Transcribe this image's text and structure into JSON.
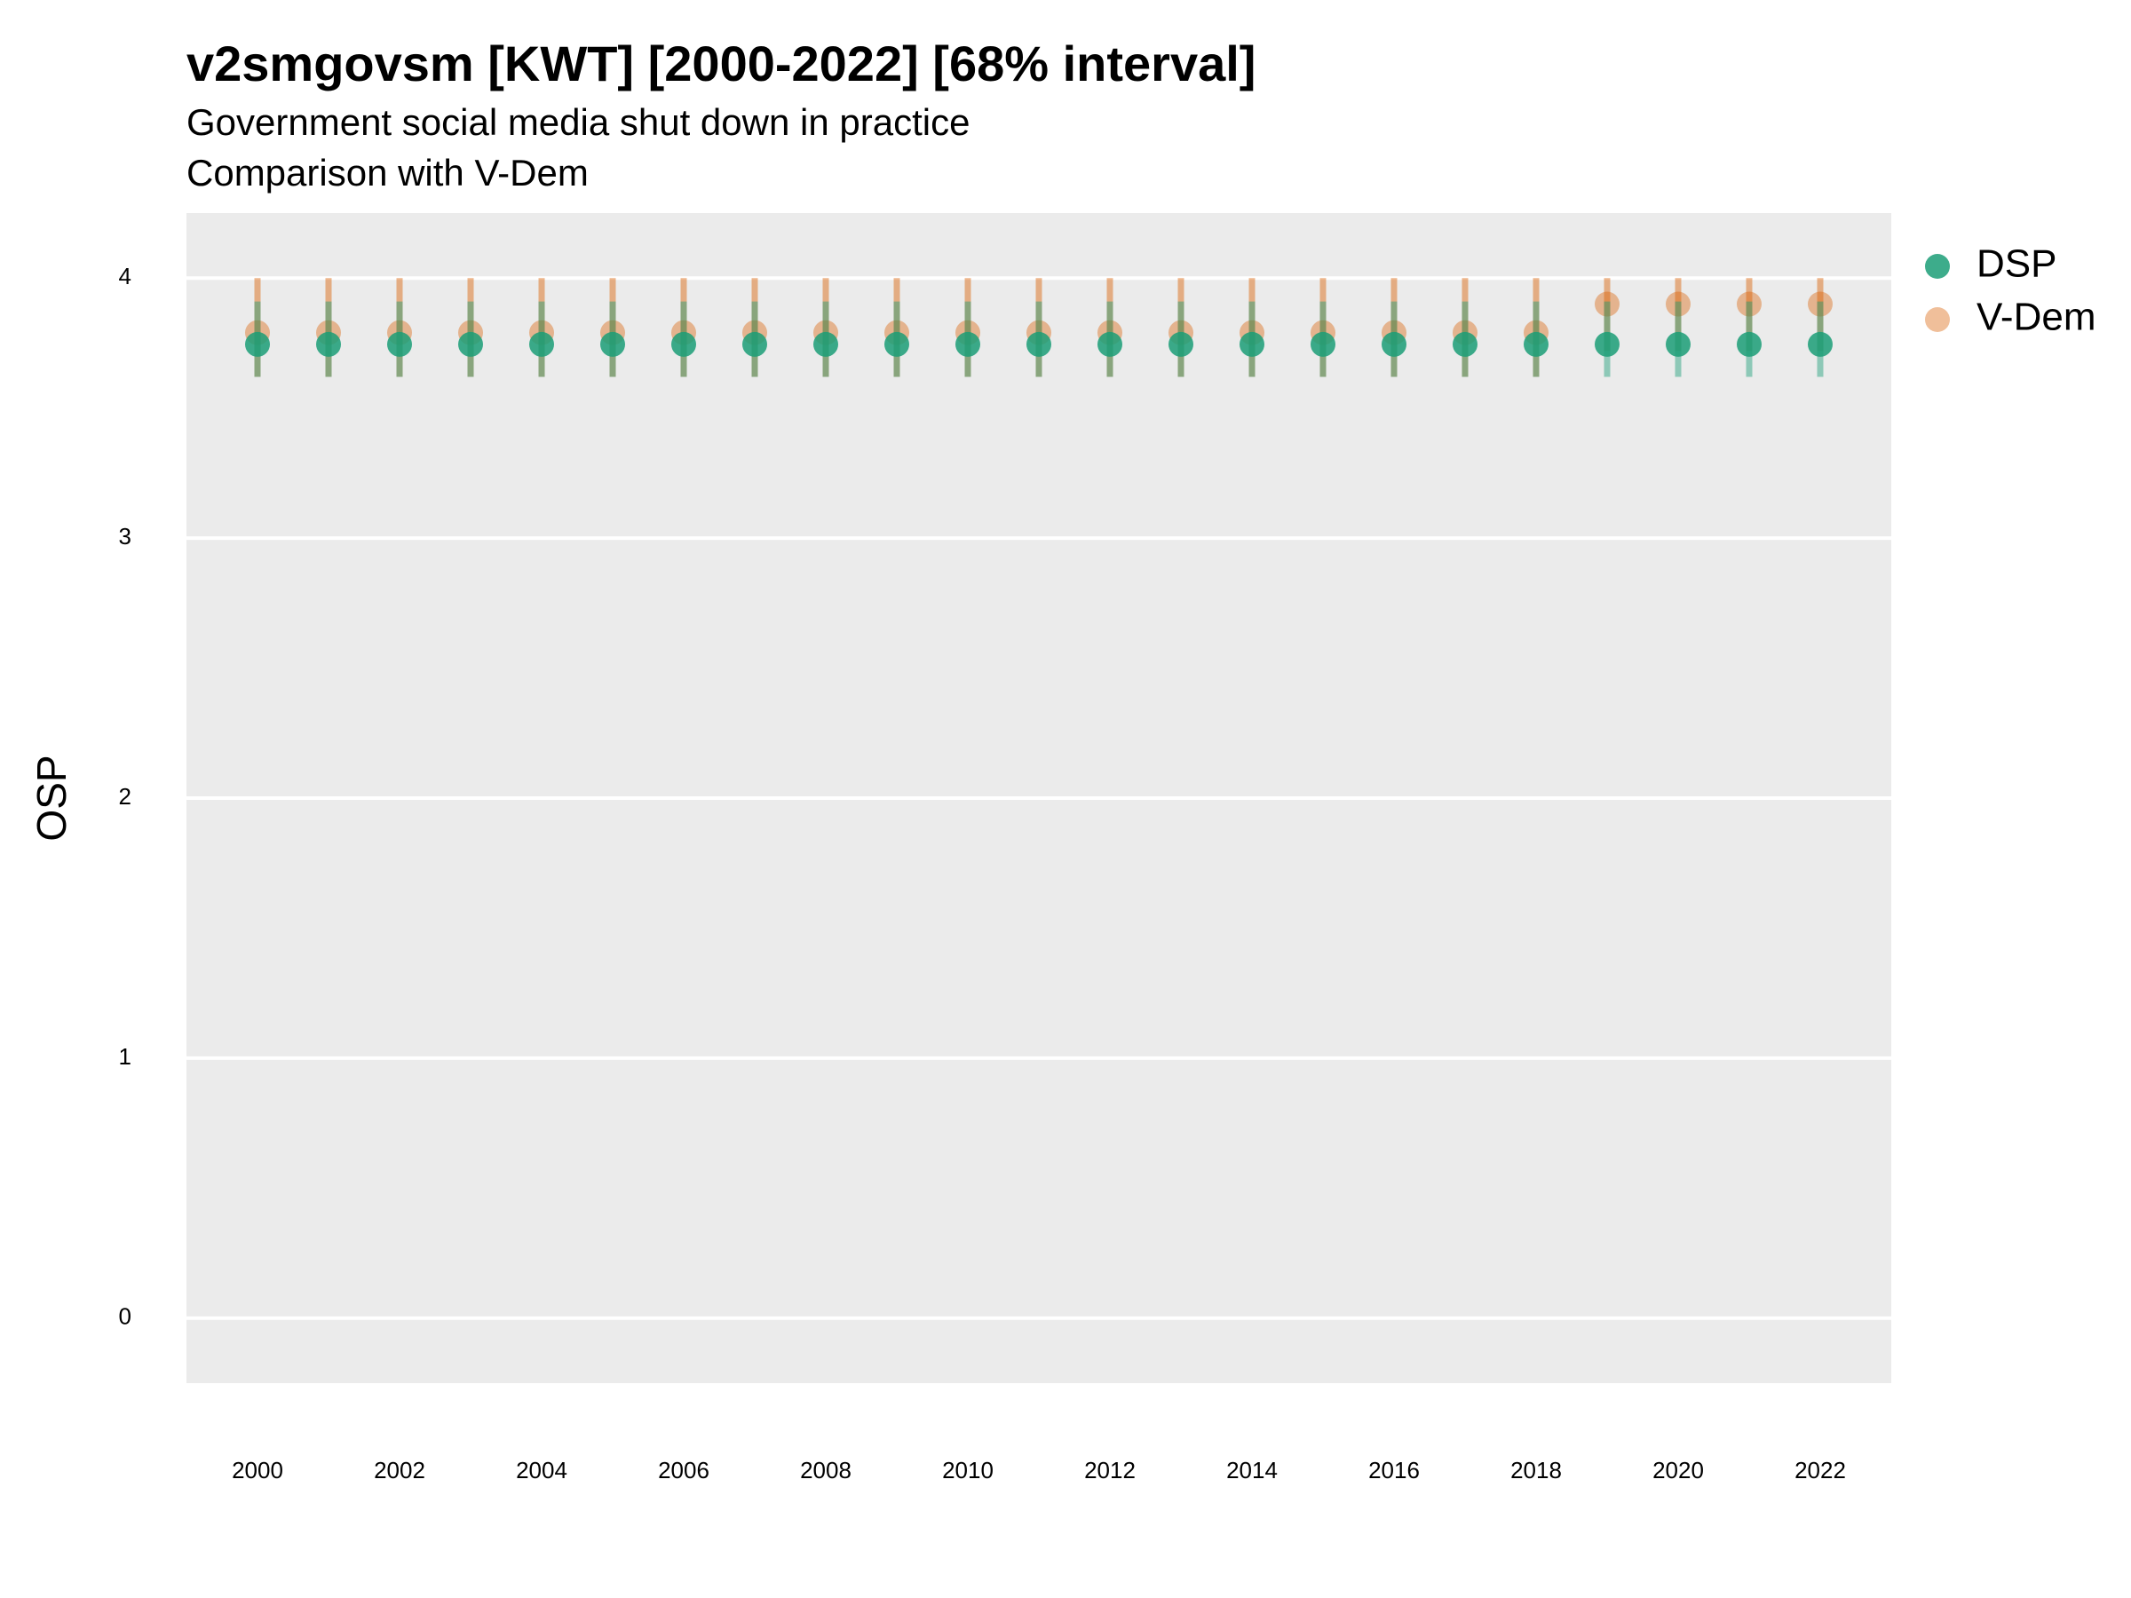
{
  "chart_data": {
    "type": "pointrange",
    "title": "v2smgovsm [KWT] [2000-2022] [68% interval]",
    "subtitle": "Government social media shut down in practice",
    "subtitle2": "Comparison with V-Dem",
    "y_label": "OSP",
    "x": [
      2000,
      2001,
      2002,
      2003,
      2004,
      2005,
      2006,
      2007,
      2008,
      2009,
      2010,
      2011,
      2012,
      2013,
      2014,
      2015,
      2016,
      2017,
      2018,
      2019,
      2020,
      2021,
      2022
    ],
    "series": [
      {
        "name": "V-Dem",
        "color": "#d95f02",
        "values": [
          3.79,
          3.79,
          3.79,
          3.79,
          3.79,
          3.79,
          3.79,
          3.79,
          3.79,
          3.79,
          3.79,
          3.79,
          3.79,
          3.79,
          3.79,
          3.79,
          3.79,
          3.79,
          3.79,
          3.9,
          3.9,
          3.9,
          3.9
        ],
        "low": [
          3.62,
          3.62,
          3.62,
          3.62,
          3.62,
          3.62,
          3.62,
          3.62,
          3.62,
          3.62,
          3.62,
          3.62,
          3.62,
          3.62,
          3.62,
          3.62,
          3.62,
          3.62,
          3.62,
          3.72,
          3.72,
          3.72,
          3.72
        ],
        "high": [
          4.0,
          4.0,
          4.0,
          4.0,
          4.0,
          4.0,
          4.0,
          4.0,
          4.0,
          4.0,
          4.0,
          4.0,
          4.0,
          4.0,
          4.0,
          4.0,
          4.0,
          4.0,
          4.0,
          4.0,
          4.0,
          4.0,
          4.0
        ]
      },
      {
        "name": "DSP",
        "color": "#1b9e77",
        "values": [
          3.745,
          3.745,
          3.745,
          3.745,
          3.745,
          3.745,
          3.745,
          3.745,
          3.745,
          3.745,
          3.745,
          3.745,
          3.745,
          3.745,
          3.745,
          3.745,
          3.745,
          3.745,
          3.745,
          3.745,
          3.745,
          3.745,
          3.745
        ],
        "low": [
          3.62,
          3.62,
          3.62,
          3.62,
          3.62,
          3.62,
          3.62,
          3.62,
          3.62,
          3.62,
          3.62,
          3.62,
          3.62,
          3.62,
          3.62,
          3.62,
          3.62,
          3.62,
          3.62,
          3.62,
          3.62,
          3.62,
          3.62
        ],
        "high": [
          3.91,
          3.91,
          3.91,
          3.91,
          3.91,
          3.91,
          3.91,
          3.91,
          3.91,
          3.91,
          3.91,
          3.91,
          3.91,
          3.91,
          3.91,
          3.91,
          3.91,
          3.91,
          3.91,
          3.91,
          3.91,
          3.91,
          3.91
        ]
      }
    ],
    "legend_order": [
      "DSP",
      "V-Dem"
    ],
    "xlim": [
      1999,
      2023
    ],
    "xticks": [
      2000,
      2002,
      2004,
      2006,
      2008,
      2010,
      2012,
      2014,
      2016,
      2018,
      2020,
      2022
    ],
    "ylim": [
      -0.25,
      4.25
    ],
    "yticks": [
      0,
      1,
      2,
      3,
      4
    ],
    "grid": true
  }
}
